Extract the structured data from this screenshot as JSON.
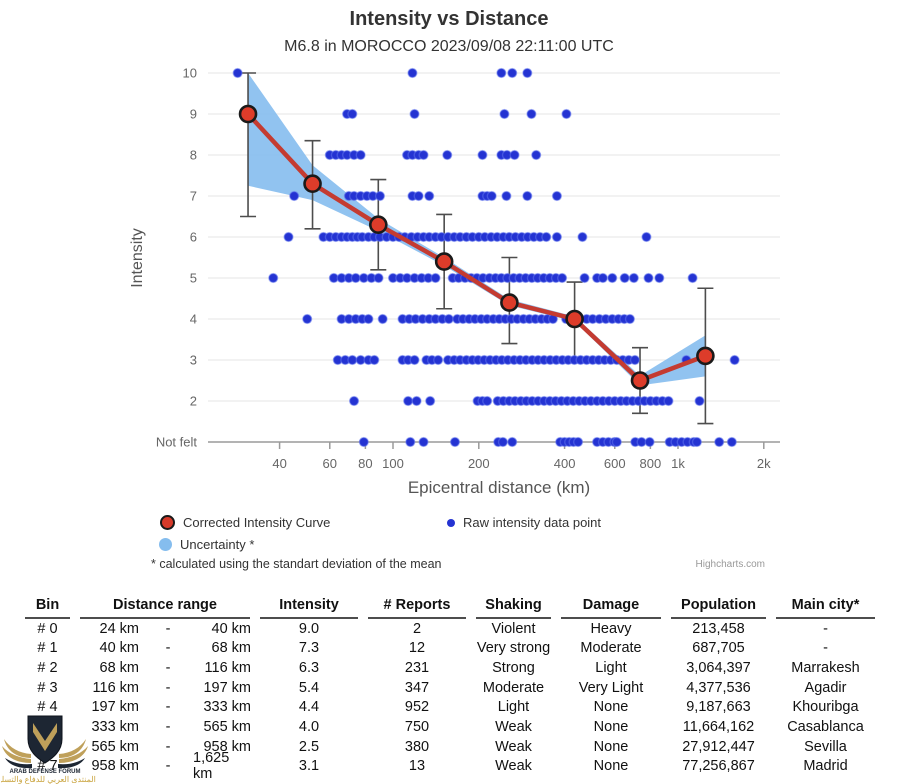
{
  "header": {
    "title": "Intensity vs Distance",
    "subtitle": "M6.8 in MOROCCO 2023/09/08 22:11:00 UTC"
  },
  "legend": {
    "corrected": "Corrected Intensity Curve",
    "uncertainty": "Uncertainty *",
    "raw": "Raw intensity data point"
  },
  "footnote": "* calculated using the standart deviation of the mean",
  "credit": "Highcharts.com",
  "chart_data": {
    "type": "line+scatter",
    "title": "Intensity vs Distance",
    "subtitle": "M6.8 in MOROCCO 2023/09/08 22:11:00 UTC",
    "xlabel": "Epicentral distance (km)",
    "ylabel": "Intensity",
    "x_scale": "log",
    "x_range_km": [
      30,
      2300
    ],
    "y_range": [
      1,
      10
    ],
    "x_ticks": [
      {
        "v": 40,
        "label": "40"
      },
      {
        "v": 60,
        "label": "60"
      },
      {
        "v": 80,
        "label": "80"
      },
      {
        "v": 100,
        "label": "100"
      },
      {
        "v": 200,
        "label": "200"
      },
      {
        "v": 400,
        "label": "400"
      },
      {
        "v": 600,
        "label": "600"
      },
      {
        "v": 800,
        "label": "800"
      },
      {
        "v": 1000,
        "label": "1k"
      },
      {
        "v": 2000,
        "label": "2k"
      }
    ],
    "y_ticks": [
      {
        "v": 10,
        "label": "10"
      },
      {
        "v": 9,
        "label": "9"
      },
      {
        "v": 8,
        "label": "8"
      },
      {
        "v": 7,
        "label": "7"
      },
      {
        "v": 6,
        "label": "6"
      },
      {
        "v": 5,
        "label": "5"
      },
      {
        "v": 4,
        "label": "4"
      },
      {
        "v": 3,
        "label": "3"
      },
      {
        "v": 2,
        "label": "2"
      },
      {
        "v": 1,
        "label": "Not felt"
      }
    ],
    "corrected_curve": {
      "name": "Corrected Intensity Curve",
      "points": [
        {
          "x": 31.0,
          "y": 9.0,
          "err": [
            6.5,
            10.0
          ],
          "band": [
            7.25,
            10.0
          ]
        },
        {
          "x": 52.2,
          "y": 7.3,
          "err": [
            6.2,
            8.35
          ],
          "band": [
            6.9,
            7.75
          ]
        },
        {
          "x": 88.8,
          "y": 6.3,
          "err": [
            5.2,
            7.4
          ],
          "band": [
            6.15,
            6.45
          ]
        },
        {
          "x": 151.2,
          "y": 5.4,
          "err": [
            4.25,
            6.55
          ],
          "band": [
            5.3,
            5.5
          ]
        },
        {
          "x": 256.1,
          "y": 4.4,
          "err": [
            3.4,
            5.5
          ],
          "band": [
            4.33,
            4.48
          ]
        },
        {
          "x": 433.7,
          "y": 4.0,
          "err": [
            3.0,
            4.9
          ],
          "band": [
            3.94,
            4.06
          ]
        },
        {
          "x": 735.7,
          "y": 2.5,
          "err": [
            1.7,
            3.3
          ],
          "band": [
            2.38,
            2.62
          ]
        },
        {
          "x": 1247.7,
          "y": 3.1,
          "err": [
            1.45,
            4.75
          ],
          "band": [
            2.6,
            3.6
          ]
        }
      ]
    },
    "raw_points": {
      "name": "Raw intensity data point",
      "by_intensity": {
        "10": [
          28.5,
          117,
          240,
          262,
          296
        ],
        "9": [
          69,
          72,
          119,
          246,
          306,
          406
        ],
        "8": [
          60,
          63,
          66,
          69,
          73,
          77,
          112,
          117,
          123,
          128,
          155,
          206,
          240,
          251,
          267,
          318
        ],
        "7": [
          45,
          70,
          73,
          77,
          81,
          85,
          90,
          117,
          123,
          134,
          206,
          214,
          222,
          250,
          296,
          376
        ],
        "6": [
          43,
          57,
          60,
          63,
          66,
          69,
          72,
          75,
          78,
          82,
          86,
          90,
          95,
          100,
          105,
          110,
          116,
          122,
          128,
          134,
          141,
          148,
          156,
          164,
          172,
          181,
          190,
          200,
          210,
          221,
          232,
          244,
          256,
          269,
          283,
          297,
          312,
          328,
          345,
          376,
          462,
          775
        ],
        "5": [
          38,
          62,
          66,
          70,
          74,
          79,
          84,
          89,
          100,
          106,
          112,
          119,
          126,
          133,
          141,
          162,
          170,
          179,
          188,
          197,
          207,
          218,
          229,
          240,
          252,
          265,
          278,
          292,
          307,
          322,
          338,
          355,
          373,
          392,
          470,
          520,
          545,
          588,
          650,
          700,
          788,
          860,
          1125
        ],
        "4": [
          50,
          66,
          70,
          74,
          78,
          82,
          92,
          108,
          114,
          120,
          127,
          134,
          141,
          149,
          157,
          168,
          176,
          185,
          194,
          204,
          214,
          225,
          236,
          248,
          260,
          273,
          287,
          301,
          316,
          332,
          348,
          364,
          405,
          428,
          452,
          478,
          502,
          530,
          558,
          588,
          618,
          648,
          678
        ],
        "3": [
          64,
          68,
          72,
          77,
          82,
          86,
          108,
          113,
          119,
          131,
          137,
          144,
          156,
          164,
          172,
          181,
          190,
          199,
          209,
          219,
          230,
          241,
          253,
          266,
          279,
          293,
          308,
          323,
          339,
          356,
          374,
          393,
          412,
          433,
          455,
          478,
          502,
          527,
          553,
          581,
          610,
          640,
          672,
          706,
          1070,
          1225,
          1580
        ],
        "2": [
          73,
          113,
          121,
          135,
          198,
          206,
          214,
          233,
          244,
          256,
          268,
          281,
          294,
          308,
          323,
          339,
          355,
          372,
          390,
          409,
          429,
          450,
          472,
          495,
          520,
          545,
          572,
          600,
          630,
          660,
          693,
          727,
          763,
          801,
          840,
          882,
          926,
          1190
        ],
        "1": [
          79,
          115,
          128,
          165,
          234,
          243,
          262,
          386,
          400,
          415,
          430,
          446,
          520,
          545,
          570,
          598,
          610,
          708,
          745,
          795,
          935,
          980,
          1030,
          1080,
          1135,
          1165,
          1395,
          1545
        ]
      }
    },
    "colors": {
      "curve": "#c43b31",
      "point_fill": "#dd3c2a",
      "point_stroke": "#1a1a1a",
      "raw": "#2433d2",
      "band": "#85bdee",
      "error_bar": "#4d4d4d",
      "grid": "#e6e6e6",
      "axis": "#9a9a9a",
      "tick_text": "#666666",
      "axis_title": "#555555"
    },
    "legend_position": "bottom",
    "grid": "horizontal-only"
  },
  "table": {
    "headers": {
      "bin": "Bin",
      "distance": "Distance range",
      "intensity": "Intensity",
      "reports": "# Reports",
      "shaking": "Shaking",
      "damage": "Damage",
      "population": "Population",
      "main_city": "Main city*"
    },
    "rows": [
      {
        "bin": "# 0",
        "from": "24 km",
        "dash": "-",
        "to": "40 km",
        "intensity": "9.0",
        "reports": "2",
        "shaking": "Violent",
        "damage": "Heavy",
        "population": "213,458",
        "main_city": "-"
      },
      {
        "bin": "# 1",
        "from": "40 km",
        "dash": "-",
        "to": "68 km",
        "intensity": "7.3",
        "reports": "12",
        "shaking": "Very strong",
        "damage": "Moderate",
        "population": "687,705",
        "main_city": "-"
      },
      {
        "bin": "# 2",
        "from": "68 km",
        "dash": "-",
        "to": "116 km",
        "intensity": "6.3",
        "reports": "231",
        "shaking": "Strong",
        "damage": "Light",
        "population": "3,064,397",
        "main_city": "Marrakesh"
      },
      {
        "bin": "# 3",
        "from": "116 km",
        "dash": "-",
        "to": "197 km",
        "intensity": "5.4",
        "reports": "347",
        "shaking": "Moderate",
        "damage": "Very Light",
        "population": "4,377,536",
        "main_city": "Agadir"
      },
      {
        "bin": "# 4",
        "from": "197 km",
        "dash": "-",
        "to": "333 km",
        "intensity": "4.4",
        "reports": "952",
        "shaking": "Light",
        "damage": "None",
        "population": "9,187,663",
        "main_city": "Khouribga"
      },
      {
        "bin": "# 5",
        "from": "333 km",
        "dash": "-",
        "to": "565 km",
        "intensity": "4.0",
        "reports": "750",
        "shaking": "Weak",
        "damage": "None",
        "population": "11,664,162",
        "main_city": "Casablanca"
      },
      {
        "bin": "# 6",
        "from": "565 km",
        "dash": "-",
        "to": "958 km",
        "intensity": "2.5",
        "reports": "380",
        "shaking": "Weak",
        "damage": "None",
        "population": "27,912,447",
        "main_city": "Sevilla"
      },
      {
        "bin": "# 7",
        "from": "958 km",
        "dash": "-",
        "to": "1,625 km",
        "intensity": "3.1",
        "reports": "13",
        "shaking": "Weak",
        "damage": "None",
        "population": "77,256,867",
        "main_city": "Madrid"
      }
    ]
  },
  "watermark": {
    "line1": "ARAB DEFENSE FORUM",
    "line2": "المنتدى العربي للدفاع والتسليح",
    "shield_color": "#1d2633",
    "gold_color": "#bfa05a"
  }
}
